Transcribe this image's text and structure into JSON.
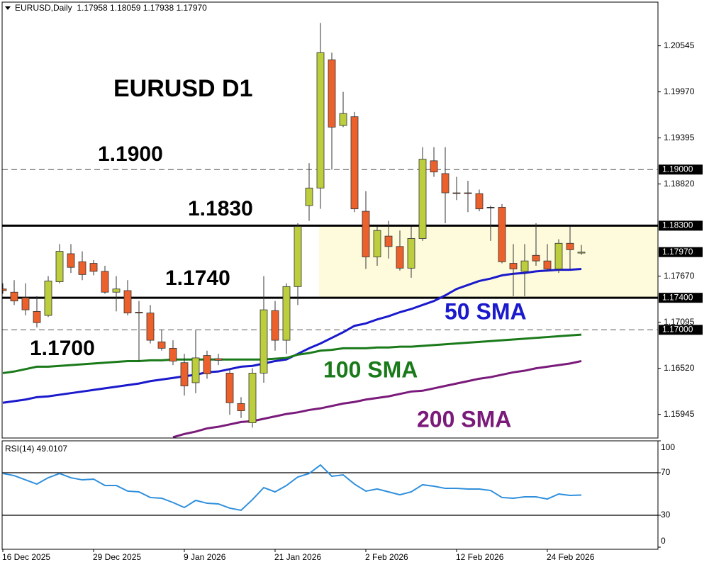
{
  "chart_data": [
    {
      "type": "candlestick",
      "title": "EURUSD,Daily  1.17958 1.18059 1.17938 1.17970",
      "categories": [
        "16 Dec 2025",
        null,
        null,
        null,
        null,
        null,
        null,
        null,
        "29 Dec 2025",
        null,
        null,
        null,
        null,
        null,
        null,
        null,
        "9 Jan 2026",
        null,
        null,
        null,
        null,
        null,
        null,
        null,
        "21 Jan 2026",
        null,
        null,
        null,
        null,
        null,
        null,
        null,
        "2 Feb 2026",
        null,
        null,
        null,
        null,
        null,
        null,
        null,
        "12 Feb 2026",
        null,
        null,
        null,
        null,
        null,
        null,
        null,
        "24 Feb 2026",
        null,
        null,
        null
      ],
      "open": [
        1.1751,
        1.1747,
        1.174,
        1.1723,
        1.1718,
        1.176,
        1.1795,
        1.1785,
        1.1783,
        1.1773,
        1.1747,
        1.1749,
        1.1722,
        1.1721,
        1.1685,
        1.1677,
        1.1659,
        1.1634,
        1.1668,
        1.1664,
        1.1646,
        1.1608,
        1.1584,
        1.1646,
        1.1724,
        1.1687,
        1.1754,
        1.1855,
        1.1877,
        1.2037,
        1.1955,
        1.1966,
        1.1848,
        1.1791,
        1.1817,
        1.1804,
        1.1777,
        1.1814,
        1.1911,
        1.1895,
        1.1871,
        1.1871,
        1.187,
        1.1853,
        1.1853,
        1.1783,
        1.1773,
        1.1793,
        1.1786,
        1.1776,
        1.1808,
        1.17958
      ],
      "high": [
        1.1758,
        1.1762,
        1.1758,
        1.1742,
        1.1767,
        1.1807,
        1.1807,
        1.1798,
        1.1787,
        1.178,
        1.1767,
        1.1762,
        1.1736,
        1.1731,
        1.17,
        1.1687,
        1.167,
        1.17,
        1.1674,
        1.167,
        1.1652,
        1.1616,
        1.1652,
        1.1767,
        1.1736,
        1.1758,
        1.1833,
        1.1908,
        1.2083,
        1.2046,
        1.1997,
        1.1972,
        1.1873,
        1.1829,
        1.1836,
        1.1824,
        1.1829,
        1.1928,
        1.1928,
        1.1928,
        1.1891,
        1.1886,
        1.1875,
        1.1855,
        1.1857,
        1.1807,
        1.1807,
        1.1833,
        1.1807,
        1.1813,
        1.1829,
        1.18059
      ],
      "low": [
        1.1745,
        1.1731,
        1.1718,
        1.1703,
        1.1716,
        1.1758,
        1.1771,
        1.1762,
        1.1768,
        1.1745,
        1.1723,
        1.1718,
        1.1661,
        1.1683,
        1.1674,
        1.1656,
        1.1618,
        1.1621,
        1.1639,
        1.1656,
        1.1594,
        1.159,
        1.1578,
        1.1634,
        1.1674,
        1.167,
        1.1731,
        1.1836,
        1.1851,
        1.19,
        1.1953,
        1.1847,
        1.1776,
        1.178,
        1.1789,
        1.1774,
        1.1765,
        1.1811,
        1.1891,
        1.1833,
        1.1862,
        1.1847,
        1.1848,
        1.1811,
        1.1783,
        1.1742,
        1.1742,
        1.178,
        1.1773,
        1.1771,
        1.1776,
        1.17938
      ],
      "close": [
        1.1749,
        1.1736,
        1.1725,
        1.1709,
        1.1761,
        1.1798,
        1.1778,
        1.1769,
        1.1773,
        1.1747,
        1.1751,
        1.1721,
        1.1721,
        1.1687,
        1.1677,
        1.1661,
        1.163,
        1.1665,
        1.1645,
        1.1662,
        1.1609,
        1.1599,
        1.1646,
        1.1725,
        1.1687,
        1.1754,
        1.1829,
        1.1877,
        1.2046,
        1.1953,
        1.197,
        1.1851,
        1.1791,
        1.1824,
        1.1804,
        1.1777,
        1.1814,
        1.1913,
        1.1897,
        1.1871,
        1.187,
        1.187,
        1.1851,
        1.1853,
        1.1785,
        1.1776,
        1.1786,
        1.1786,
        1.1776,
        1.1808,
        1.18,
        1.1797
      ],
      "up_color": "#bccd3e",
      "down_color": "#ec602c",
      "series": [
        {
          "name": "50 SMA",
          "color": "#1a1acc",
          "values": [
            1.1609,
            1.1611,
            1.1613,
            1.1616,
            1.1617,
            1.1619,
            1.1621,
            1.1623,
            1.1625,
            1.1627,
            1.1629,
            1.1631,
            1.1633,
            1.1636,
            1.1638,
            1.164,
            1.1642,
            1.1644,
            1.1647,
            1.1648,
            1.1651,
            1.1654,
            1.1655,
            1.1658,
            1.1661,
            1.1663,
            1.167,
            1.1677,
            1.1683,
            1.169,
            1.1697,
            1.1705,
            1.1708,
            1.1713,
            1.1717,
            1.1722,
            1.1726,
            1.1731,
            1.1736,
            1.1743,
            1.1751,
            1.1756,
            1.1761,
            1.1764,
            1.1768,
            1.177,
            1.1771,
            1.1773,
            1.1774,
            1.1775,
            1.1775,
            1.1776
          ]
        },
        {
          "name": "100 SMA",
          "color": "#1a7a1a",
          "values": [
            1.1646,
            1.1648,
            1.1651,
            1.1654,
            1.1654,
            1.1655,
            1.1656,
            1.1657,
            1.1658,
            1.1659,
            1.166,
            1.1661,
            1.1661,
            1.1662,
            1.1662,
            1.1663,
            1.1663,
            1.1663,
            1.1663,
            1.1663,
            1.1663,
            1.1663,
            1.1663,
            1.1663,
            1.1664,
            1.1665,
            1.1669,
            1.1671,
            1.1674,
            1.1675,
            1.1677,
            1.1677,
            1.1677,
            1.1678,
            1.1678,
            1.1679,
            1.1679,
            1.168,
            1.1681,
            1.1682,
            1.1683,
            1.1684,
            1.1685,
            1.1686,
            1.1687,
            1.1688,
            1.1689,
            1.169,
            1.1691,
            1.1692,
            1.1693,
            1.1694
          ]
        },
        {
          "name": "200 SMA",
          "color": "#7a1a7a",
          "values": [
            null,
            null,
            null,
            null,
            null,
            null,
            null,
            null,
            null,
            null,
            null,
            null,
            null,
            null,
            null,
            1.1566,
            1.157,
            1.1573,
            1.1577,
            1.1579,
            1.1582,
            1.1585,
            1.1586,
            1.1589,
            1.1592,
            1.1595,
            1.1597,
            1.16,
            1.1602,
            1.1605,
            1.1608,
            1.161,
            1.1613,
            1.1615,
            1.1617,
            1.162,
            1.1623,
            1.1624,
            1.1627,
            1.163,
            1.1633,
            1.1636,
            1.1639,
            1.1641,
            1.1644,
            1.1647,
            1.1649,
            1.1652,
            1.1654,
            1.1656,
            1.1658,
            1.1661
          ]
        }
      ],
      "ylim": [
        1.1565,
        1.2109
      ],
      "yticks": [
        1.20545,
        {
          "value": 1.1997,
          "label": "1.19970"
        },
        1.19395,
        {
          "value": 1.1882,
          "label": "1.18820"
        },
        {
          "value": 1.1767,
          "label": "1.17670"
        },
        1.17095,
        {
          "value": 1.1652,
          "label": "1.16520"
        },
        1.15945
      ],
      "levels": [
        {
          "value": 1.19,
          "label": "1.19000",
          "style": "dashed"
        },
        {
          "value": 1.183,
          "label": "1.18300",
          "style": "solid"
        },
        {
          "value": 1.174,
          "label": "1.17400",
          "style": "solid"
        },
        {
          "value": 1.17,
          "label": "1.17000",
          "style": "dashed"
        }
      ],
      "current_price": {
        "value": 1.1797,
        "label": "1.17970"
      },
      "zone": {
        "from": 1.174,
        "to": 1.183,
        "color": "#fdfbdc"
      },
      "annotations": [
        "EURUSD D1",
        "1.1900",
        "1.1830",
        "1.1740",
        "1.1700"
      ]
    },
    {
      "type": "line",
      "title": "RSI(14) 49.0107",
      "color": "#2f8fdc",
      "values": [
        69.3,
        67.3,
        63.3,
        59.3,
        65.3,
        69.3,
        65.3,
        63.3,
        64,
        58,
        58,
        52.7,
        52,
        46.7,
        46,
        42,
        37.3,
        44,
        41.3,
        40.7,
        36.7,
        34.7,
        44.7,
        56,
        52,
        58,
        66,
        69.3,
        77.3,
        66.7,
        68,
        59.3,
        52.7,
        54.7,
        52,
        49.3,
        52,
        58.7,
        57.3,
        55.3,
        55.3,
        54.7,
        54.7,
        53.3,
        46.7,
        46,
        47.3,
        47.3,
        45.3,
        50,
        48.7,
        49.0107
      ],
      "ylim": [
        0,
        100
      ],
      "yticks": [
        0,
        30,
        70,
        100
      ]
    }
  ]
}
